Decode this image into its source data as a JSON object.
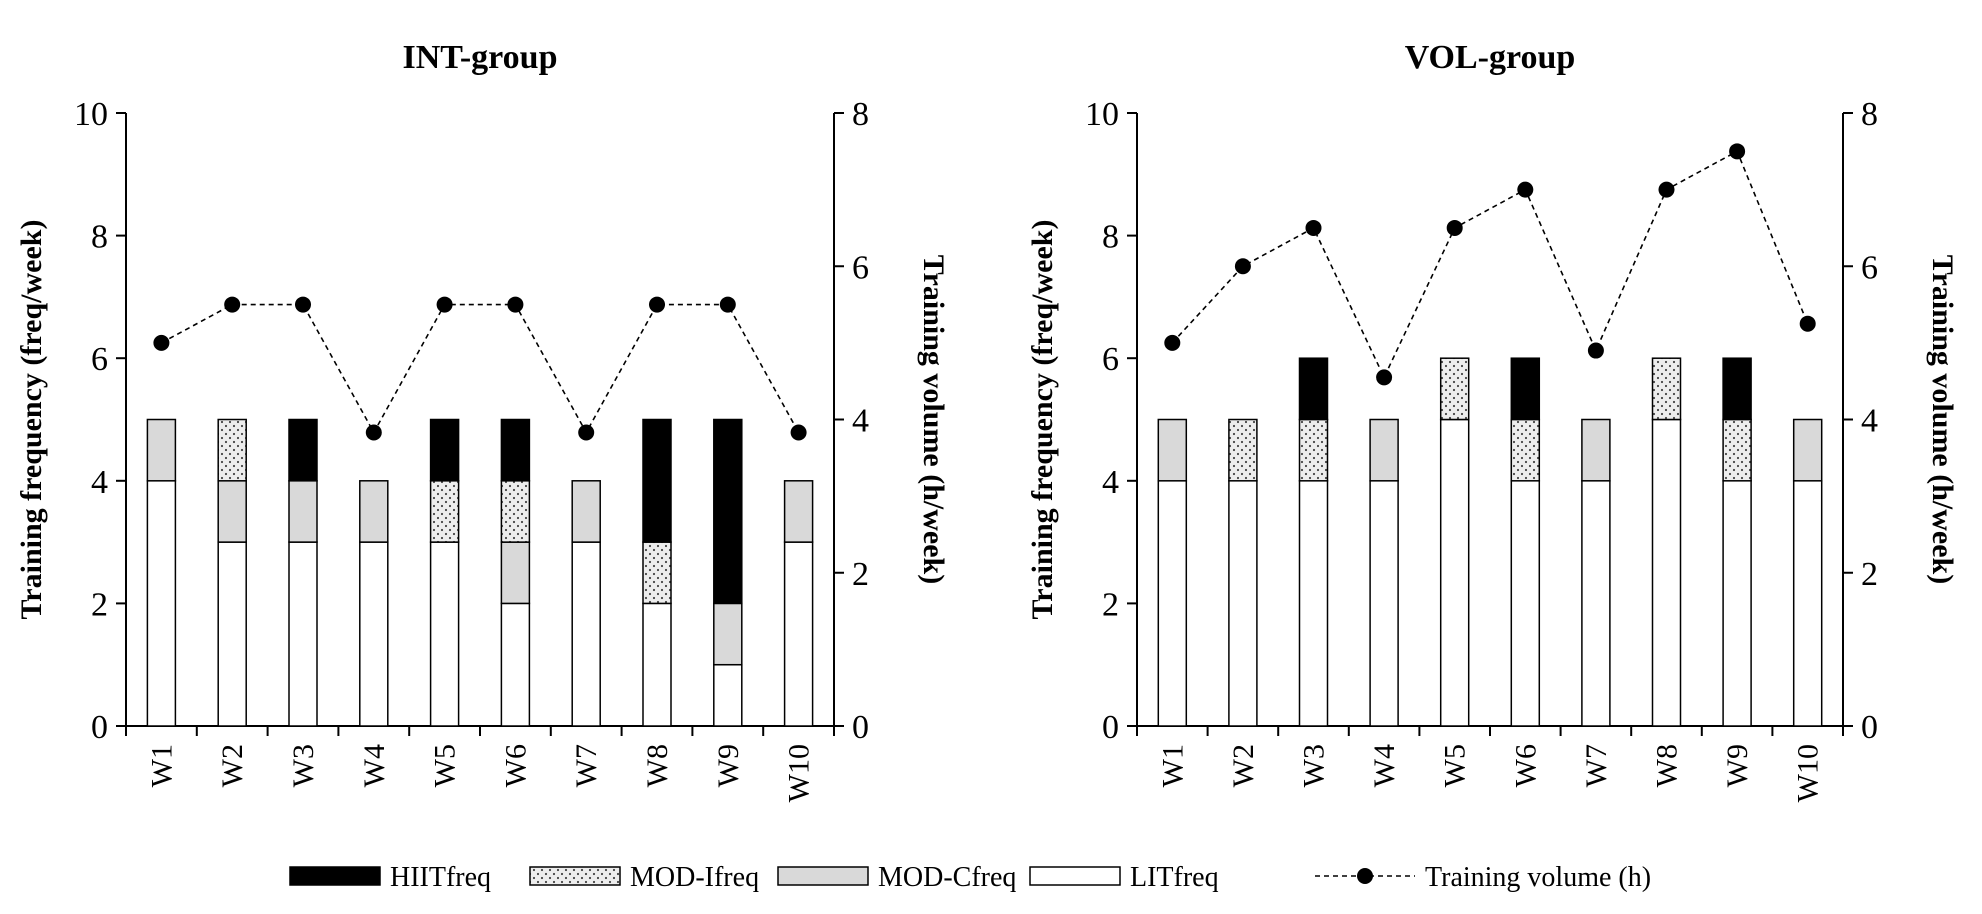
{
  "chart_data": [
    {
      "type": "bar",
      "stacked": true,
      "title": "INT-group",
      "ylabel": "Training frequency (freq/week)",
      "y2label": "Training volume (h/week)",
      "ylim": [
        0,
        10
      ],
      "y2lim": [
        0,
        8
      ],
      "yticks": [
        0,
        2,
        4,
        6,
        8,
        10
      ],
      "y2ticks": [
        0,
        2,
        4,
        6,
        8
      ],
      "categories": [
        "W1",
        "W2",
        "W3",
        "W4",
        "W5",
        "W6",
        "W7",
        "W8",
        "W9",
        "W10"
      ],
      "series": [
        {
          "name": "LITfreq",
          "values": [
            4,
            3,
            3,
            3,
            3,
            2,
            3,
            2,
            1,
            3
          ]
        },
        {
          "name": "MOD-Cfreq",
          "values": [
            1,
            1,
            1,
            1,
            0,
            1,
            1,
            0,
            1,
            1
          ]
        },
        {
          "name": "MOD-Ifreq",
          "values": [
            0,
            1,
            0,
            0,
            1,
            1,
            0,
            1,
            0,
            0
          ]
        },
        {
          "name": "HIITfreq",
          "values": [
            0,
            0,
            1,
            0,
            1,
            1,
            0,
            2,
            3,
            0
          ]
        }
      ],
      "line": {
        "name": "Training volume (h)",
        "axis": "right",
        "values": [
          5.0,
          5.5,
          5.5,
          3.83,
          5.5,
          5.5,
          3.83,
          5.5,
          5.5,
          3.83
        ]
      },
      "grid": false
    },
    {
      "type": "bar",
      "stacked": true,
      "title": "VOL-group",
      "ylabel": "Training frequency (freq/week)",
      "y2label": "Training volume (h/week)",
      "ylim": [
        0,
        10
      ],
      "y2lim": [
        0,
        8
      ],
      "yticks": [
        0,
        2,
        4,
        6,
        8,
        10
      ],
      "y2ticks": [
        0,
        2,
        4,
        6,
        8
      ],
      "categories": [
        "W1",
        "W2",
        "W3",
        "W4",
        "W5",
        "W6",
        "W7",
        "W8",
        "W9",
        "W10"
      ],
      "series": [
        {
          "name": "LITfreq",
          "values": [
            4,
            4,
            4,
            4,
            5,
            4,
            4,
            5,
            4,
            4
          ]
        },
        {
          "name": "MOD-Cfreq",
          "values": [
            1,
            0,
            0,
            1,
            0,
            0,
            1,
            0,
            0,
            1
          ]
        },
        {
          "name": "MOD-Ifreq",
          "values": [
            0,
            1,
            1,
            0,
            1,
            1,
            0,
            1,
            1,
            0
          ]
        },
        {
          "name": "HIITfreq",
          "values": [
            0,
            0,
            1,
            0,
            0,
            1,
            0,
            0,
            1,
            0
          ]
        }
      ],
      "line": {
        "name": "Training volume (h)",
        "axis": "right",
        "values": [
          5.0,
          6.0,
          6.5,
          4.55,
          6.5,
          7.0,
          4.9,
          7.0,
          7.5,
          5.25
        ]
      },
      "grid": false
    }
  ],
  "legend": {
    "placement": "bottom",
    "items": [
      {
        "label": "HIITfreq",
        "style": "solid-black"
      },
      {
        "label": "MOD-Ifreq",
        "style": "dotted"
      },
      {
        "label": "MOD-Cfreq",
        "style": "light-gray"
      },
      {
        "label": "LITfreq",
        "style": "white"
      },
      {
        "label": "Training volume (h)",
        "style": "dashed-line-dot"
      }
    ]
  },
  "colors": {
    "HIITfreq": "#000000",
    "MOD-Ifreq": "#e6e6e6",
    "MOD-Cfreq": "#d9d9d9",
    "LITfreq": "#ffffff",
    "line": "#000000"
  }
}
